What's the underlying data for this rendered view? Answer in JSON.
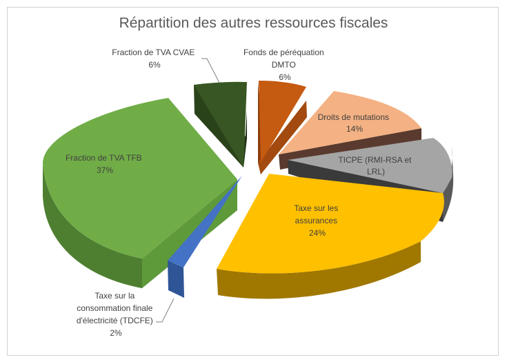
{
  "chart_data": {
    "type": "pie",
    "title": "Répartition des autres ressources fiscales",
    "exploded": true,
    "style": "3d",
    "slices": [
      {
        "name": "Fonds de péréquation DMTO",
        "value": 6,
        "label": "6%",
        "color": "#C55A11"
      },
      {
        "name": "Droits de mutations",
        "value": 14,
        "label": "14%",
        "color": "#F4B183"
      },
      {
        "name": "TICPE (RMI-RSA et LRL)",
        "value": 11,
        "label": "",
        "color": "#A5A5A5"
      },
      {
        "name": "Taxe sur les assurances",
        "value": 24,
        "label": "24%",
        "color": "#FFC000"
      },
      {
        "name": "Taxe sur la consommation finale d'électricité (TDCFE)",
        "value": 2,
        "label": "2%",
        "color": "#4472C4"
      },
      {
        "name": "Fraction de TVA TFB",
        "value": 37,
        "label": "37%",
        "color": "#70AD47"
      },
      {
        "name": "Fraction de TVA CVAE",
        "value": 6,
        "label": "6%",
        "color": "#375623"
      }
    ],
    "label_lines": {
      "dmto": [
        "Fonds de péréquation",
        "DMTO",
        "6%"
      ],
      "mutations": [
        "Droits de mutations",
        "14%"
      ],
      "ticpe": [
        "TICPE (RMI-RSA et",
        "LRL)"
      ],
      "assurances": [
        "Taxe sur les",
        "assurances",
        "24%"
      ],
      "tdcfe": [
        "Taxe sur la",
        "consommation finale",
        "d'électricité  (TDCFE)",
        "2%"
      ],
      "tfb": [
        "Fraction de TVA TFB",
        "37%"
      ],
      "cvae": [
        "Fraction de TVA CVAE",
        "6%"
      ]
    }
  }
}
